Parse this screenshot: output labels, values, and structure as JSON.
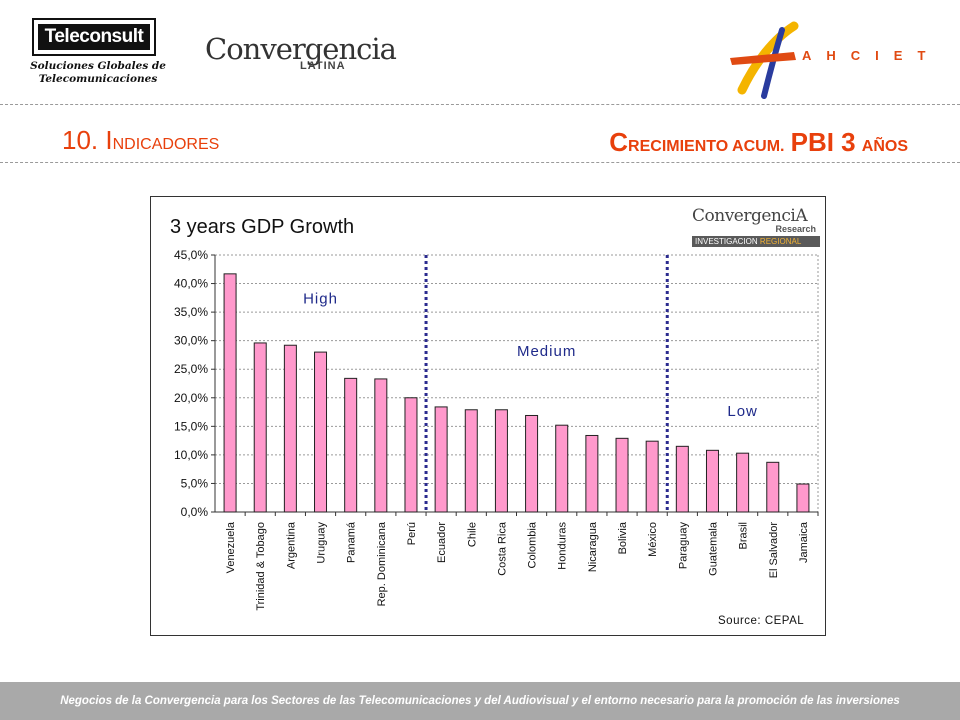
{
  "header": {
    "teleconsult": {
      "name": "Teleconsult",
      "tagline1": "Soluciones Globales de",
      "tagline2": "Telecomunicaciones"
    },
    "convergencia": {
      "main": "Convergencia",
      "sub": "LATINA"
    },
    "ahciet": {
      "letters": "AHCIET"
    },
    "section_number": "10.",
    "section_initial": "I",
    "section_rest": "NDICADORES",
    "title_initial": "C",
    "title_rest1": "RECIMIENTO ACUM.",
    "title_big": "PBI 3",
    "title_rest2": "AÑOS"
  },
  "chart_logo": {
    "main": "ConvergenciA",
    "research": "Research",
    "bar_part1": "INVESTIGACION",
    "bar_part2": "REGIONAL"
  },
  "chart_data": {
    "type": "bar",
    "title": "3 years GDP Growth",
    "source": "Source: CEPAL",
    "categories": [
      "Venezuela",
      "Trinidad & Tobago",
      "Argentina",
      "Uruguay",
      "Panamá",
      "Rep. Dominicana",
      "Perú",
      "Ecuador",
      "Chile",
      "Costa Rica",
      "Colombia",
      "Honduras",
      "Nicaragua",
      "Bolivia",
      "México",
      "Paraguay",
      "Guatemala",
      "Brasil",
      "El Salvador",
      "Jamaica"
    ],
    "values": [
      41.7,
      29.6,
      29.2,
      28.0,
      23.4,
      23.3,
      20.0,
      18.4,
      17.9,
      17.9,
      16.9,
      15.2,
      13.4,
      12.9,
      12.4,
      11.5,
      10.8,
      10.3,
      8.7,
      4.9
    ],
    "ylim": [
      0,
      45
    ],
    "yticks": [
      0,
      5,
      10,
      15,
      20,
      25,
      30,
      35,
      40,
      45
    ],
    "ytick_labels": [
      "0,0%",
      "5,0%",
      "10,0%",
      "15,0%",
      "20,0%",
      "25,0%",
      "30,0%",
      "35,0%",
      "40,0%",
      "45,0%"
    ],
    "grid": true,
    "bar_color": "#ff99cc",
    "divider_color": "#2b2b8f",
    "dividers_after_index": [
      6,
      14
    ],
    "groups": [
      {
        "label": "High",
        "start": 0,
        "end": 6
      },
      {
        "label": "Medium",
        "start": 7,
        "end": 14
      },
      {
        "label": "Low",
        "start": 15,
        "end": 19
      }
    ]
  },
  "footer": {
    "text": "Negocios de la Convergencia para los  Sectores de las Telecomunicaciones y del Audiovisual y el entorno necesario para la promoción de las inversiones"
  },
  "colors": {
    "accent": "#e8400c",
    "footer_bg": "#a9a9a9"
  }
}
